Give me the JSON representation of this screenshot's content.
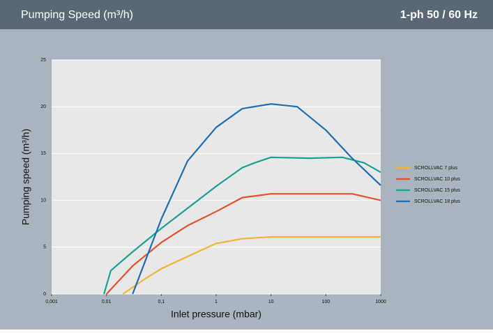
{
  "chart_data": {
    "type": "line",
    "title": "Pumping Speed (m³/h)",
    "subtitle": "1-ph 50 / 60 Hz",
    "x_label": "Inlet pressure (mbar)",
    "y_label": "Pumping speed (m³/h)",
    "xscale": "log",
    "xlim": [
      0.001,
      1000
    ],
    "xticks": [
      {
        "value": 0.001,
        "label": "0,001"
      },
      {
        "value": 0.01,
        "label": "0,01"
      },
      {
        "value": 0.1,
        "label": "0,1"
      },
      1,
      10,
      100,
      1000
    ],
    "ylim": [
      0,
      25
    ],
    "yticks": [
      0,
      5,
      10,
      15,
      20,
      25
    ],
    "grid": true,
    "legend": "right",
    "series": [
      {
        "name": "SCROLLVAC 7 plus",
        "color": "#f5b335",
        "x": [
          0.02,
          0.05,
          0.1,
          0.3,
          1,
          3,
          10,
          100,
          1000
        ],
        "values": [
          0,
          1.6,
          2.7,
          4,
          5.4,
          5.9,
          6.1,
          6.1,
          6.1
        ]
      },
      {
        "name": "SCROLLVAC 10 plus",
        "color": "#e5512a",
        "x": [
          0.01,
          0.03,
          0.1,
          0.3,
          1,
          3,
          10,
          100,
          300,
          1000
        ],
        "values": [
          0,
          3,
          5.5,
          7.3,
          8.8,
          10.3,
          10.7,
          10.7,
          10.7,
          10
        ]
      },
      {
        "name": "SCROLLVAC 15 plus",
        "color": "#1aa091",
        "x": [
          0.009,
          0.012,
          0.03,
          0.1,
          1,
          3,
          5,
          10,
          50,
          200,
          500,
          1000
        ],
        "values": [
          0,
          2.5,
          4.5,
          7,
          11.5,
          13.5,
          14,
          14.6,
          14.5,
          14.6,
          14,
          13
        ]
      },
      {
        "name": "SCROLLVAC 18 plus",
        "color": "#1b6db5",
        "x": [
          0.03,
          0.1,
          0.3,
          1,
          3,
          10,
          30,
          100,
          300,
          1000
        ],
        "values": [
          0,
          8,
          14.2,
          17.8,
          19.8,
          20.3,
          20,
          17.5,
          14.5,
          11.6
        ]
      }
    ]
  }
}
